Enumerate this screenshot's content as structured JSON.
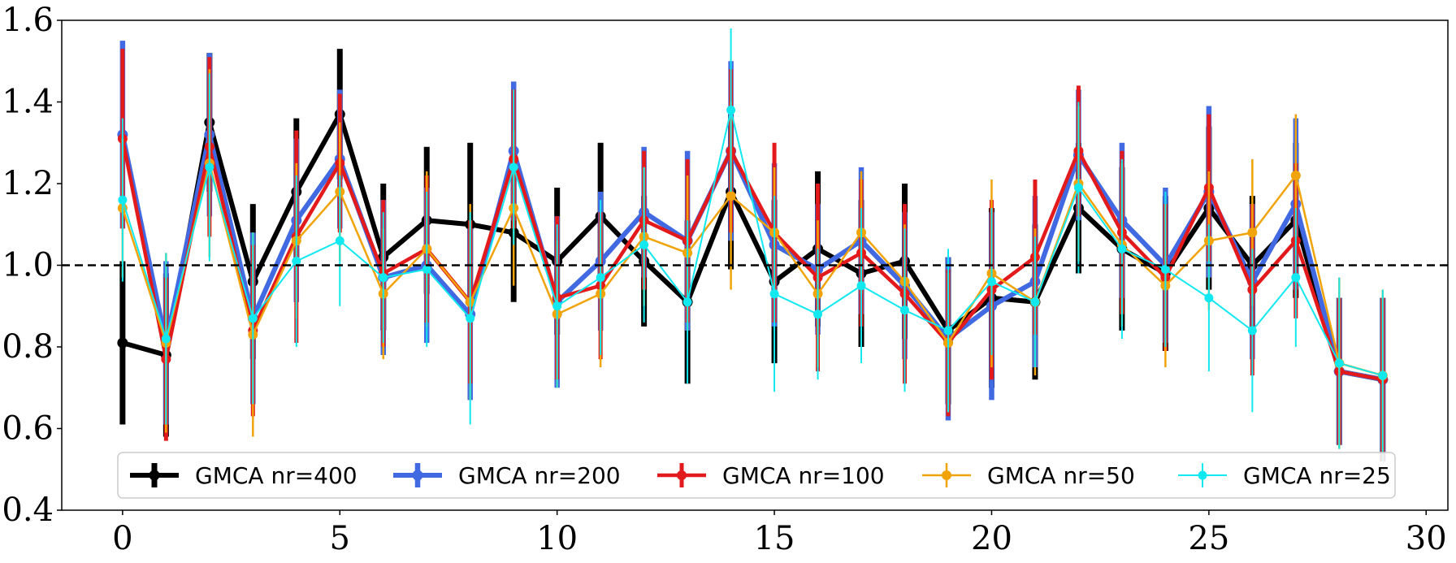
{
  "chart_data": {
    "type": "line",
    "title": "",
    "xlabel": "",
    "ylabel": "",
    "xlim": [
      -1.4,
      30.5
    ],
    "ylim": [
      0.4,
      1.6
    ],
    "xticks": [
      0,
      5,
      10,
      15,
      20,
      25,
      30
    ],
    "yticks": [
      0.4,
      0.6,
      0.8,
      1.0,
      1.2,
      1.4,
      1.6
    ],
    "xtick_labels": [
      "0",
      "5",
      "10",
      "15",
      "20",
      "25",
      "30"
    ],
    "ytick_labels": [
      "0.4",
      "0.6",
      "0.8",
      "1.0",
      "1.2",
      "1.4",
      "1.6"
    ],
    "reference_line": {
      "y": 1.0,
      "style": "dashed",
      "color": "#000000"
    },
    "legend_position": "lower-center",
    "x": [
      0,
      1,
      2,
      3,
      4,
      5,
      6,
      7,
      8,
      9,
      10,
      11,
      12,
      13,
      14,
      15,
      16,
      17,
      18,
      19,
      20,
      21,
      22,
      23,
      24,
      25,
      26,
      27,
      28,
      29
    ],
    "series": [
      {
        "name": "GMCA nr=400",
        "color": "#000000",
        "values": [
          0.81,
          0.78,
          1.35,
          0.96,
          1.18,
          1.37,
          1.02,
          1.11,
          1.1,
          1.08,
          1.01,
          1.12,
          1.01,
          0.91,
          1.18,
          0.96,
          1.04,
          0.98,
          1.01,
          0.84,
          0.92,
          0.91,
          1.14,
          1.04,
          0.98,
          1.14,
          1.0,
          1.11,
          0.74,
          0.72
        ],
        "errors": [
          0.2,
          0.2,
          0.17,
          0.19,
          0.18,
          0.16,
          0.18,
          0.18,
          0.2,
          0.17,
          0.18,
          0.18,
          0.16,
          0.2,
          0.19,
          0.2,
          0.19,
          0.18,
          0.19,
          0.18,
          0.22,
          0.19,
          0.16,
          0.2,
          0.19,
          0.2,
          0.17,
          0.19,
          0.18,
          0.2
        ]
      },
      {
        "name": "GMCA nr=200",
        "color": "#4169e1",
        "values": [
          1.32,
          0.81,
          1.32,
          0.87,
          1.11,
          1.26,
          0.97,
          1.0,
          0.88,
          1.28,
          0.91,
          1.01,
          1.13,
          1.06,
          1.28,
          1.05,
          0.99,
          1.06,
          0.95,
          0.82,
          0.9,
          0.96,
          1.27,
          1.11,
          1.0,
          1.18,
          0.96,
          1.15,
          0.74,
          0.72
        ],
        "errors": [
          0.23,
          0.2,
          0.2,
          0.21,
          0.2,
          0.17,
          0.19,
          0.19,
          0.21,
          0.17,
          0.21,
          0.17,
          0.16,
          0.22,
          0.22,
          0.2,
          0.16,
          0.18,
          0.18,
          0.2,
          0.23,
          0.21,
          0.16,
          0.19,
          0.19,
          0.21,
          0.19,
          0.21,
          0.18,
          0.2
        ]
      },
      {
        "name": "GMCA nr=100",
        "color": "#e31a1c",
        "values": [
          1.31,
          0.77,
          1.29,
          0.84,
          1.07,
          1.25,
          0.98,
          1.04,
          0.91,
          1.26,
          0.92,
          0.95,
          1.11,
          1.06,
          1.28,
          1.08,
          0.97,
          1.03,
          0.93,
          0.81,
          0.94,
          1.02,
          1.28,
          1.08,
          0.97,
          1.19,
          0.94,
          1.06,
          0.74,
          0.72
        ],
        "errors": [
          0.22,
          0.2,
          0.22,
          0.21,
          0.26,
          0.17,
          0.18,
          0.18,
          0.2,
          0.17,
          0.2,
          0.18,
          0.17,
          0.2,
          0.2,
          0.22,
          0.23,
          0.18,
          0.22,
          0.18,
          0.22,
          0.19,
          0.16,
          0.2,
          0.18,
          0.18,
          0.21,
          0.19,
          0.18,
          0.2
        ]
      },
      {
        "name": "GMCA nr=50",
        "color": "#f0a30a",
        "values": [
          1.14,
          0.81,
          1.25,
          0.83,
          1.06,
          1.18,
          0.93,
          1.04,
          0.91,
          1.14,
          0.88,
          0.93,
          1.07,
          1.03,
          1.17,
          1.08,
          0.93,
          1.08,
          0.96,
          0.81,
          0.98,
          0.91,
          1.2,
          1.05,
          0.95,
          1.06,
          1.08,
          1.22,
          0.76,
          0.73
        ],
        "errors": [
          0.17,
          0.22,
          0.23,
          0.25,
          0.19,
          0.17,
          0.16,
          0.19,
          0.24,
          0.19,
          0.18,
          0.18,
          0.17,
          0.19,
          0.23,
          0.16,
          0.18,
          0.15,
          0.14,
          0.17,
          0.23,
          0.18,
          0.19,
          0.2,
          0.2,
          0.17,
          0.18,
          0.15,
          0.21,
          0.21
        ]
      },
      {
        "name": "GMCA nr=25",
        "color": "#11e8f0",
        "values": [
          1.16,
          0.82,
          1.24,
          0.87,
          1.01,
          1.06,
          0.97,
          0.99,
          0.87,
          1.24,
          0.9,
          0.97,
          1.05,
          0.91,
          1.38,
          0.93,
          0.88,
          0.95,
          0.89,
          0.84,
          0.96,
          0.91,
          1.19,
          1.04,
          0.99,
          0.92,
          0.84,
          0.97,
          0.76,
          0.73
        ],
        "errors": [
          0.2,
          0.21,
          0.23,
          0.21,
          0.21,
          0.16,
          0.16,
          0.19,
          0.26,
          0.19,
          0.2,
          0.19,
          0.19,
          0.2,
          0.2,
          0.24,
          0.16,
          0.19,
          0.2,
          0.2,
          0.18,
          0.16,
          0.21,
          0.22,
          0.19,
          0.18,
          0.2,
          0.17,
          0.21,
          0.21
        ]
      }
    ]
  }
}
